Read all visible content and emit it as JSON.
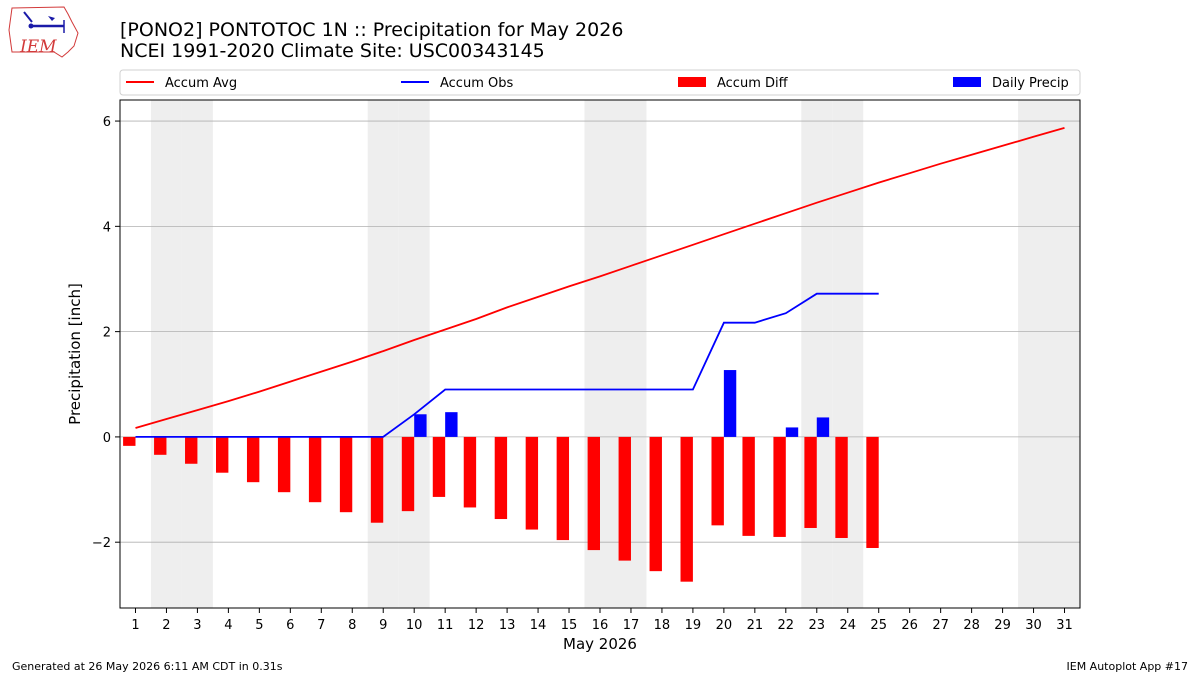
{
  "header": {
    "logo_text": "IEM",
    "title_line1": "[PONO2] PONTOTOC 1N :: Precipitation for May 2026",
    "title_line2": "NCEI 1991-2020 Climate Site: USC00343145"
  },
  "footer": {
    "generated": "Generated at 26 May 2026 6:11 AM CDT in 0.31s",
    "app": "IEM Autoplot App #17"
  },
  "colors": {
    "accum_avg": "#ff0000",
    "accum_obs": "#0000ff",
    "accum_diff": "#ff0000",
    "daily_precip": "#0000ff",
    "weekend_band": "#eeeeee",
    "grid": "#b0b0b0"
  },
  "chart_data": {
    "type": "bar",
    "xlabel": "May 2026",
    "ylabel": "Precipitation [inch]",
    "xlim": [
      0.5,
      31.5
    ],
    "ylim": [
      -3.25,
      6.4
    ],
    "yticks": [
      -2,
      0,
      2,
      4,
      6
    ],
    "grid": "horizontal",
    "legend_position": "top",
    "categories": [
      "1",
      "2",
      "3",
      "4",
      "5",
      "6",
      "7",
      "8",
      "9",
      "10",
      "11",
      "12",
      "13",
      "14",
      "15",
      "16",
      "17",
      "18",
      "19",
      "20",
      "21",
      "22",
      "23",
      "24",
      "25",
      "26",
      "27",
      "28",
      "29",
      "30",
      "31"
    ],
    "weekend_days": [
      2,
      3,
      9,
      10,
      16,
      17,
      23,
      24,
      30,
      31
    ],
    "series": [
      {
        "name": "Accum Avg",
        "type": "line",
        "x": [
          1,
          2,
          3,
          4,
          5,
          6,
          7,
          8,
          9,
          10,
          11,
          12,
          13,
          14,
          15,
          16,
          17,
          18,
          19,
          20,
          21,
          22,
          23,
          24,
          25,
          26,
          27,
          28,
          29,
          30,
          31
        ],
        "values": [
          0.17,
          0.34,
          0.51,
          0.68,
          0.86,
          1.05,
          1.24,
          1.43,
          1.63,
          1.84,
          2.04,
          2.24,
          2.46,
          2.66,
          2.86,
          3.05,
          3.25,
          3.45,
          3.65,
          3.85,
          4.05,
          4.25,
          4.45,
          4.64,
          4.83,
          5.01,
          5.19,
          5.36,
          5.53,
          5.7,
          5.87
        ]
      },
      {
        "name": "Accum Obs",
        "type": "line",
        "x": [
          1,
          2,
          3,
          4,
          5,
          6,
          7,
          8,
          9,
          10,
          11,
          12,
          13,
          14,
          15,
          16,
          17,
          18,
          19,
          20,
          21,
          22,
          23,
          24,
          25
        ],
        "values": [
          0,
          0,
          0,
          0,
          0,
          0,
          0,
          0,
          0,
          0.43,
          0.9,
          0.9,
          0.9,
          0.9,
          0.9,
          0.9,
          0.9,
          0.9,
          0.9,
          2.17,
          2.17,
          2.35,
          2.72,
          2.72,
          2.72
        ]
      },
      {
        "name": "Accum Diff",
        "type": "bar",
        "x": [
          1,
          2,
          3,
          4,
          5,
          6,
          7,
          8,
          9,
          10,
          11,
          12,
          13,
          14,
          15,
          16,
          17,
          18,
          19,
          20,
          21,
          22,
          23,
          24,
          25
        ],
        "values": [
          -0.17,
          -0.34,
          -0.51,
          -0.68,
          -0.86,
          -1.05,
          -1.24,
          -1.43,
          -1.63,
          -1.41,
          -1.14,
          -1.34,
          -1.56,
          -1.76,
          -1.96,
          -2.15,
          -2.35,
          -2.55,
          -2.75,
          -1.68,
          -1.88,
          -1.9,
          -1.73,
          -1.92,
          -2.11
        ]
      },
      {
        "name": "Daily Precip",
        "type": "bar",
        "x": [
          10,
          11,
          20,
          22,
          23
        ],
        "values": [
          0.43,
          0.47,
          1.27,
          0.18,
          0.37
        ]
      }
    ]
  }
}
